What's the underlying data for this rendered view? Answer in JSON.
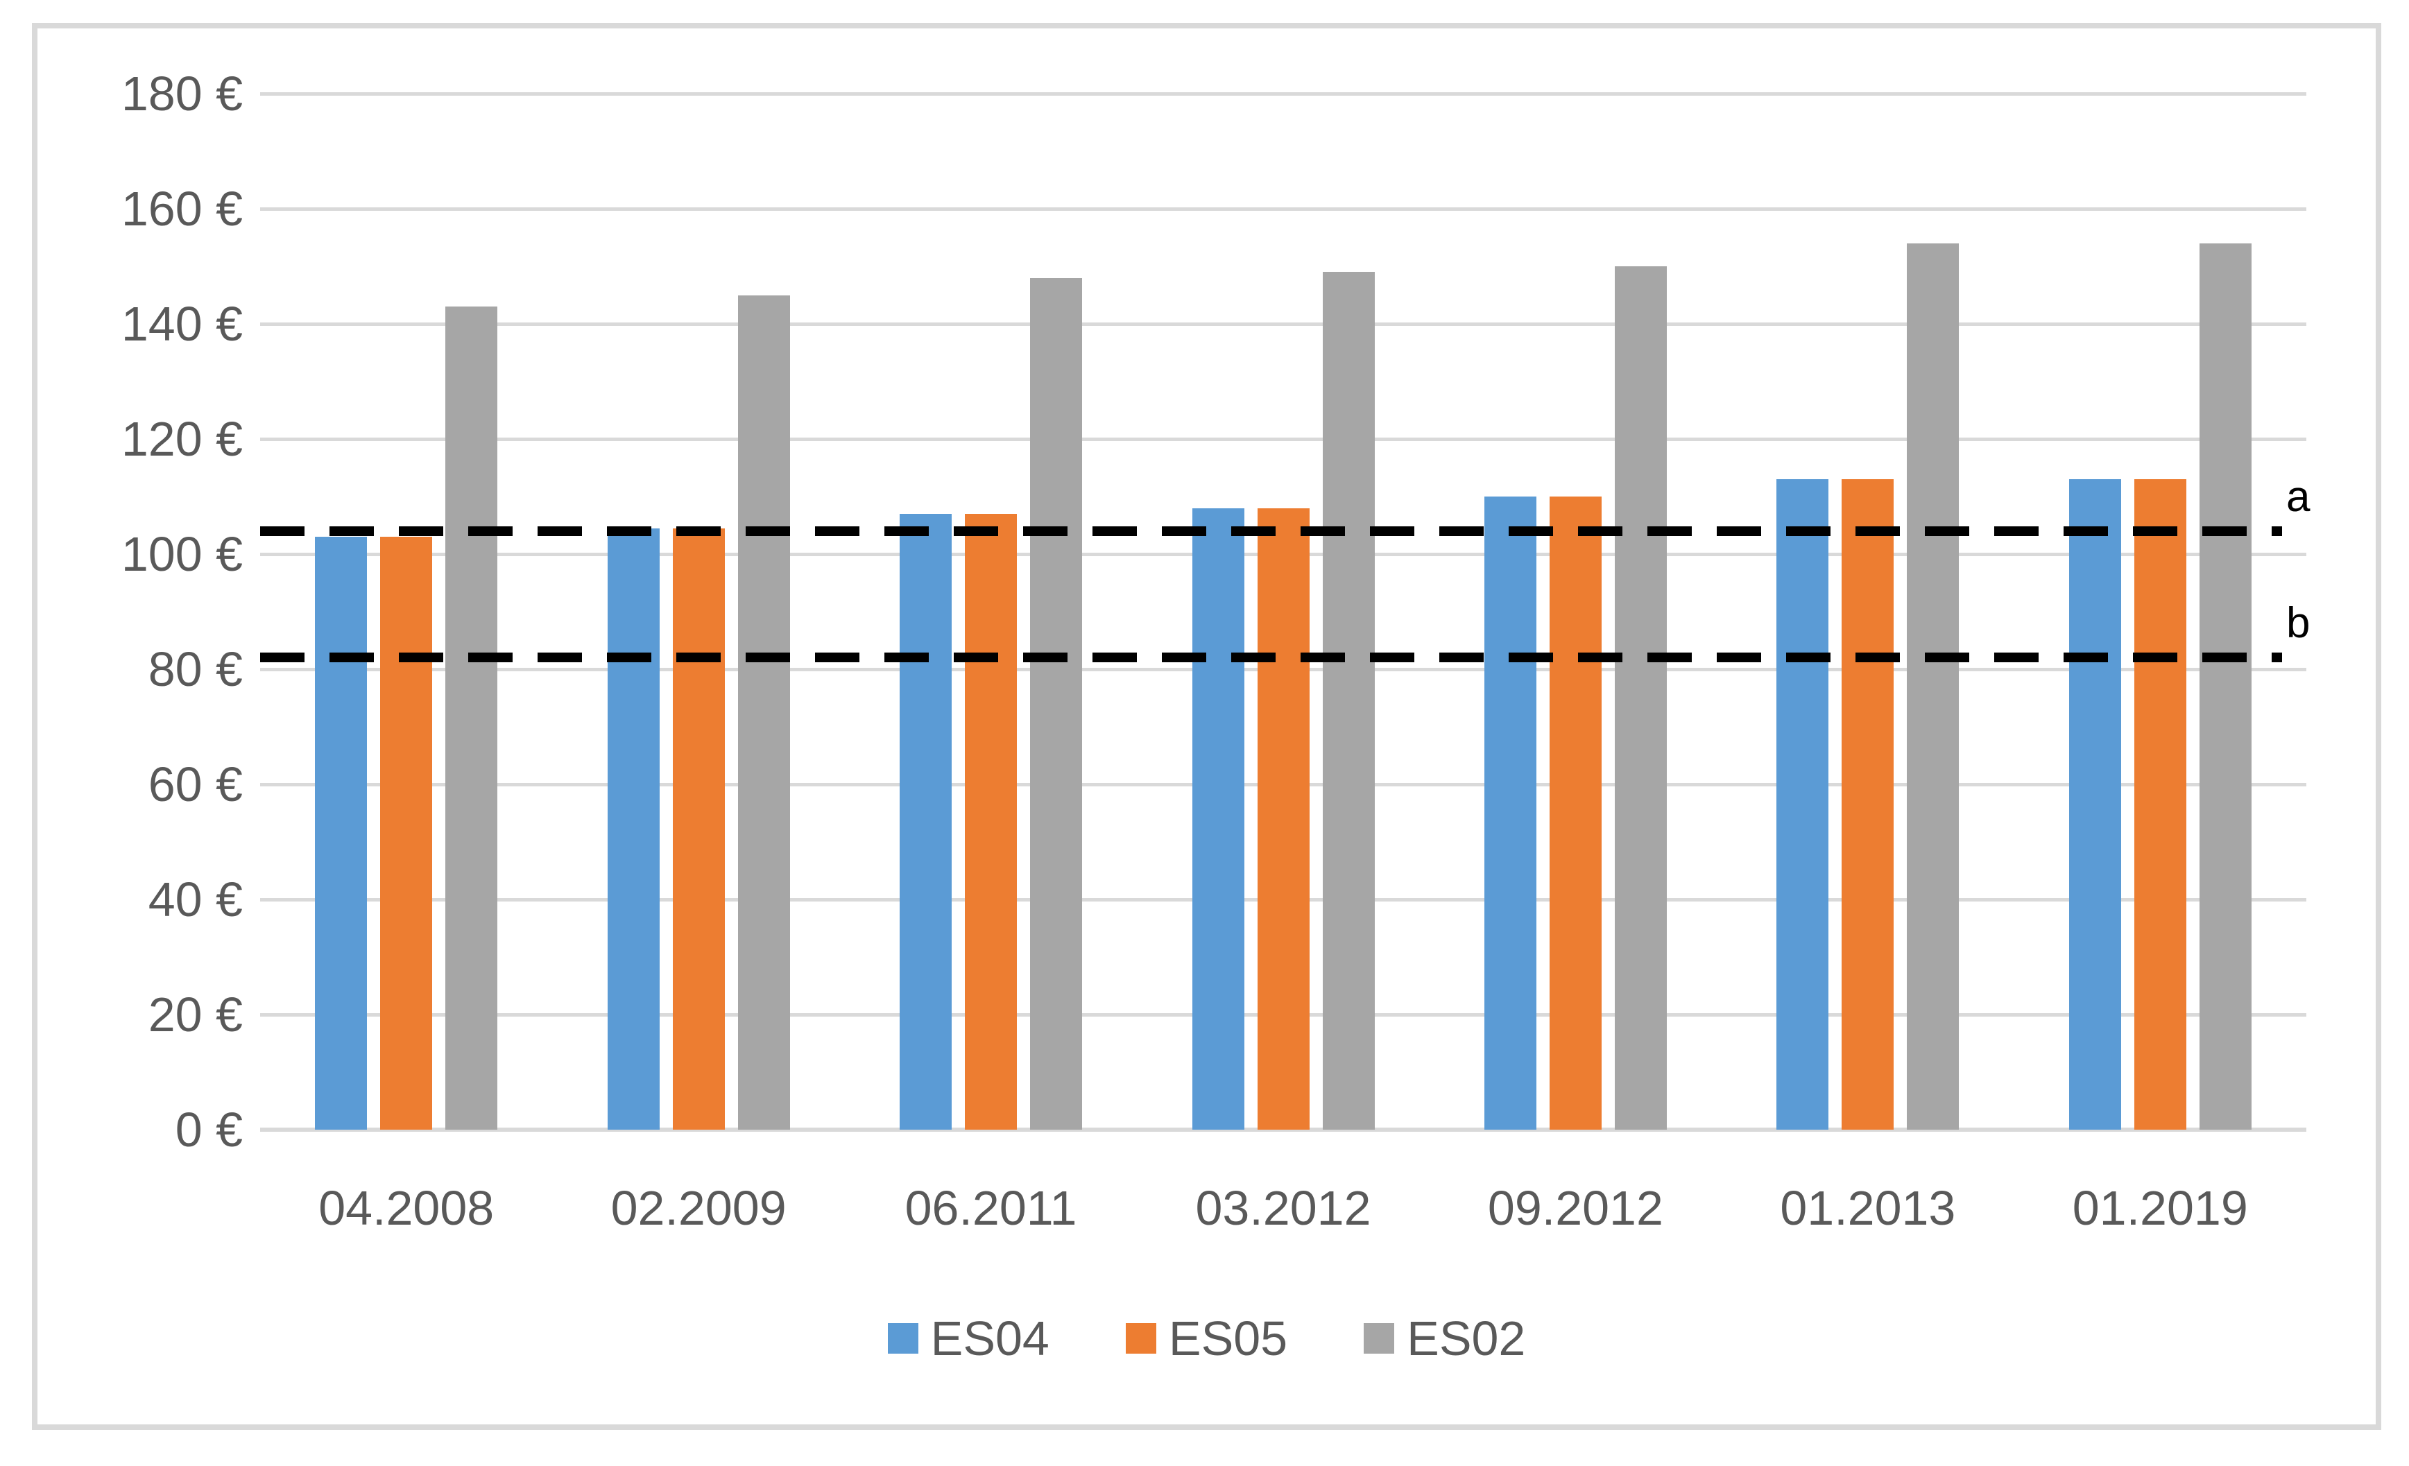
{
  "chart_data": {
    "type": "bar",
    "title": "",
    "categories": [
      "04.2008",
      "02.2009",
      "06.2011",
      "03.2012",
      "09.2012",
      "01.2013",
      "01.2019"
    ],
    "series": [
      {
        "name": "ES04",
        "color": "#5b9bd5",
        "values": [
          103,
          104.5,
          107,
          108,
          110,
          113,
          113
        ]
      },
      {
        "name": "ES05",
        "color": "#ed7d31",
        "values": [
          103,
          104.5,
          107,
          108,
          110,
          113,
          113
        ]
      },
      {
        "name": "ES02",
        "color": "#a6a6a6",
        "values": [
          143,
          145,
          148,
          149,
          150,
          154,
          154
        ]
      }
    ],
    "y_axis": {
      "min": 0,
      "max": 180,
      "step": 20,
      "tick_labels": [
        "0 €",
        "20 €",
        "40 €",
        "60 €",
        "80 €",
        "100 €",
        "120 €",
        "140 €",
        "160 €",
        "180 €"
      ]
    },
    "reference_lines": [
      {
        "label": "a",
        "value": 104,
        "style": "dashed",
        "color": "#000000"
      },
      {
        "label": "b",
        "value": 82,
        "style": "dashed",
        "color": "#000000"
      }
    ],
    "legend_position": "bottom",
    "grid": true,
    "colors": {
      "gridline": "#d9d9d9",
      "frame_border": "#d9d9d9",
      "axis_text": "#595959",
      "reference_line": "#000000",
      "background": "#ffffff"
    }
  }
}
